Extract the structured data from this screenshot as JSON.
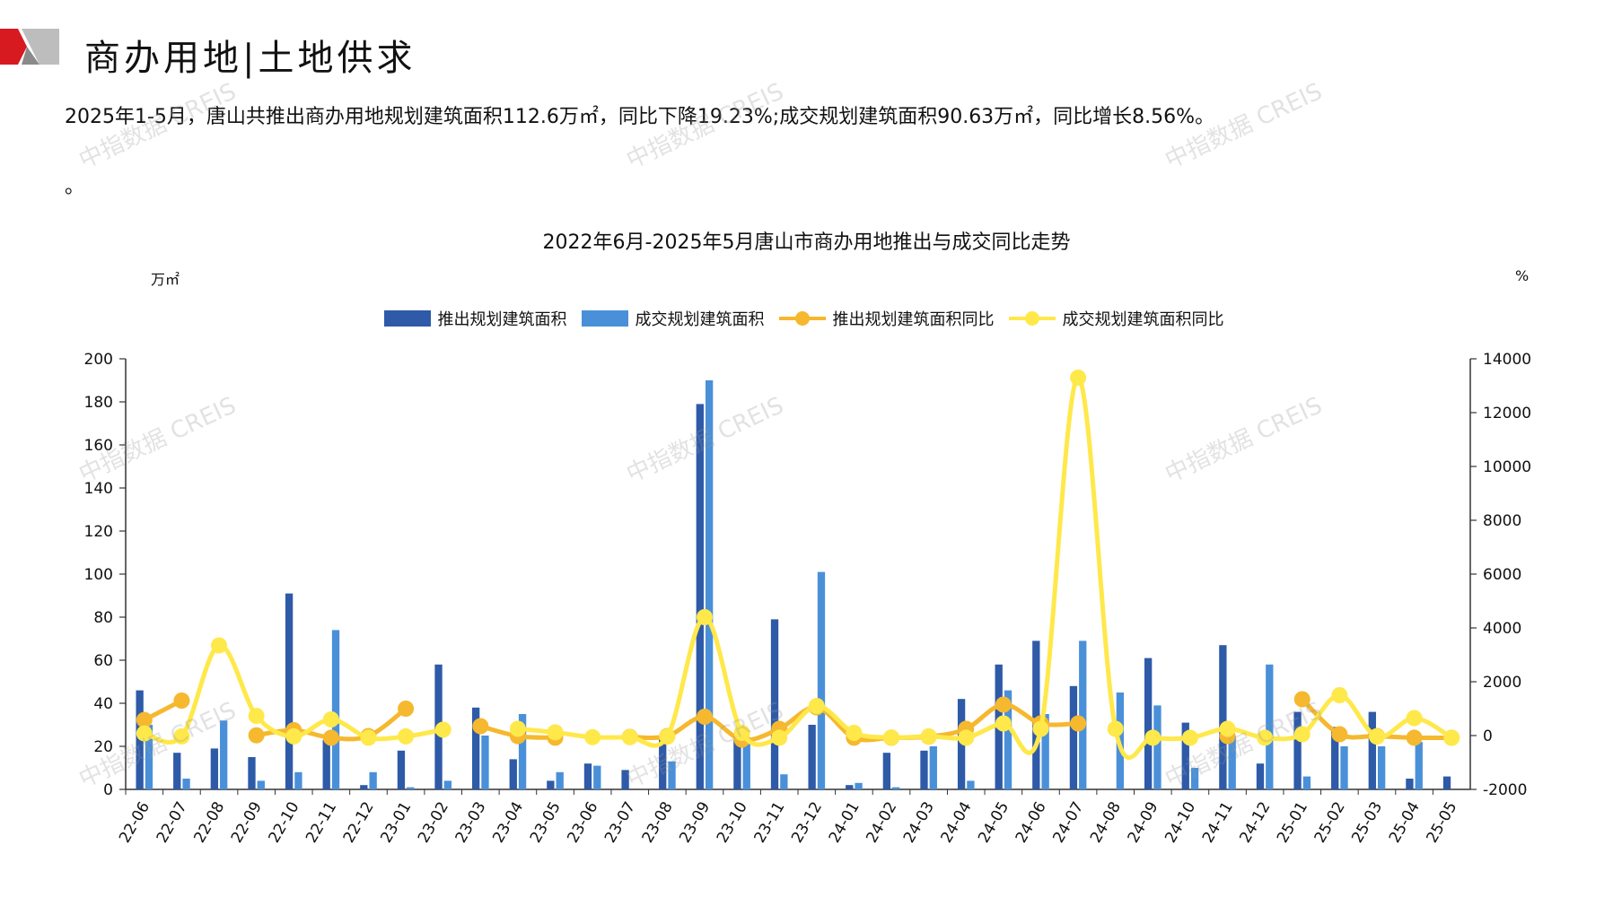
{
  "header": {
    "title": "商办用地|土地供求"
  },
  "summary": {
    "text": "2025年1-5月，唐山共推出商办用地规划建筑面积112.6万㎡，同比下降19.23%;成交规划建筑面积90.63万㎡，同比增长8.56%。",
    "text2": "。"
  },
  "watermark": "中指数据 CREIS",
  "colors": {
    "launch_bar": "#2E5AA8",
    "deal_bar": "#4A90D9",
    "launch_line": "#F5B82E",
    "deal_line": "#FFE84A",
    "brand_red": "#D71920"
  },
  "chart_data": {
    "type": "bar",
    "title": "2022年6月-2025年5月唐山市商办用地推出与成交同比走势",
    "ylabel_left": "万㎡",
    "ylabel_right": "%",
    "ylim_left": [
      0,
      200
    ],
    "ylim_right": [
      -2000,
      14000
    ],
    "yticks_left": [
      "0",
      "20",
      "40",
      "60",
      "80",
      "100",
      "120",
      "140",
      "160",
      "180",
      "200"
    ],
    "yticks_right": [
      "-2000",
      "0",
      "2000",
      "4000",
      "6000",
      "8000",
      "10000",
      "12000",
      "14000"
    ],
    "legend_position": "top",
    "categories": [
      "22-06",
      "22-07",
      "22-08",
      "22-09",
      "22-10",
      "22-11",
      "22-12",
      "23-01",
      "23-02",
      "23-03",
      "23-04",
      "23-05",
      "23-06",
      "23-07",
      "23-08",
      "23-09",
      "23-10",
      "23-11",
      "23-12",
      "24-01",
      "24-02",
      "24-03",
      "24-04",
      "24-05",
      "24-06",
      "24-07",
      "24-08",
      "24-09",
      "24-10",
      "24-11",
      "24-12",
      "25-01",
      "25-02",
      "25-03",
      "25-04",
      "25-05"
    ],
    "series": [
      {
        "name": "推出规划建筑面积",
        "axis": "left",
        "kind": "bar",
        "values": [
          46,
          17,
          19,
          15,
          91,
          23,
          2,
          18,
          58,
          38,
          14,
          4,
          12,
          9,
          25,
          179,
          23,
          79,
          30,
          2,
          17,
          18,
          42,
          58,
          69,
          48,
          0,
          61,
          31,
          67,
          12,
          36,
          29,
          36,
          5,
          6
        ]
      },
      {
        "name": "成交规划建筑面积",
        "axis": "left",
        "kind": "bar",
        "values": [
          30,
          5,
          32,
          4,
          8,
          74,
          8,
          1,
          4,
          25,
          35,
          8,
          11,
          0,
          13,
          190,
          22,
          7,
          101,
          3,
          1,
          20,
          4,
          46,
          35,
          69,
          45,
          39,
          10,
          25,
          58,
          6,
          20,
          20,
          22,
          0
        ]
      },
      {
        "name": "推出规划建筑面积同比",
        "axis": "right",
        "kind": "line",
        "values": [
          580,
          1300,
          null,
          10,
          200,
          -80,
          -20,
          1000,
          null,
          350,
          -20,
          -80,
          null,
          -50,
          -20,
          700,
          -150,
          250,
          1050,
          -80,
          -80,
          -40,
          250,
          1150,
          450,
          450,
          null,
          null,
          null,
          -20,
          null,
          1350,
          50,
          -20,
          -80,
          -80
        ]
      },
      {
        "name": "成交规划建筑面积同比",
        "axis": "right",
        "kind": "line",
        "values": [
          80,
          -30,
          3350,
          730,
          -30,
          600,
          -80,
          -30,
          220,
          null,
          250,
          120,
          -60,
          -60,
          -40,
          4400,
          100,
          -80,
          1100,
          100,
          -70,
          -30,
          -80,
          450,
          250,
          13300,
          250,
          -80,
          -80,
          250,
          -80,
          50,
          1500,
          -40,
          650,
          -80
        ]
      }
    ]
  }
}
